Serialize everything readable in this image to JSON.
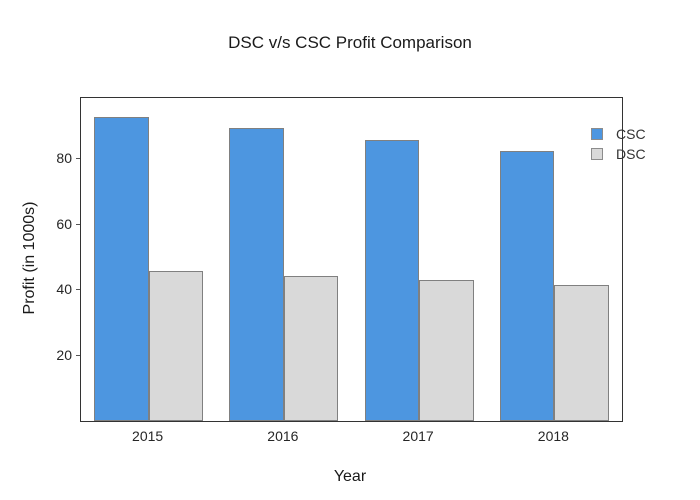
{
  "chart_data": {
    "type": "bar",
    "title": "DSC v/s CSC Profit Comparison",
    "xlabel": "Year",
    "ylabel": "Profit (in 1000s)",
    "categories": [
      "2015",
      "2016",
      "2017",
      "2018"
    ],
    "series": [
      {
        "name": "CSC",
        "color": "#4d96e0",
        "edge_color": "#808080",
        "values": [
          93,
          89.5,
          86,
          82.5
        ]
      },
      {
        "name": "DSC",
        "color": "#d9d9d9",
        "edge_color": "#808080",
        "values": [
          46,
          44.5,
          43,
          41.5
        ]
      }
    ],
    "y_ticks": [
      20,
      40,
      60,
      80
    ],
    "ylim": [
      0,
      98.8
    ],
    "grid": false,
    "legend_position": "top-right",
    "plot_border_color": "#333333",
    "background_color": "#ffffff"
  }
}
